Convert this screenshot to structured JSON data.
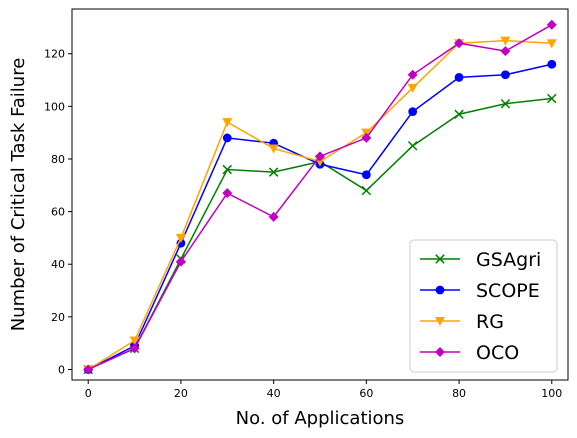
{
  "chart_data": {
    "type": "line",
    "xlabel": "No. of Applications",
    "ylabel": "Number of Critical Task Failure",
    "x": [
      0,
      10,
      20,
      30,
      40,
      50,
      60,
      70,
      80,
      90,
      100
    ],
    "xlim": [
      -3.5,
      103.5
    ],
    "ylim": [
      -4,
      137
    ],
    "xticks": [
      0,
      20,
      40,
      60,
      80,
      100
    ],
    "yticks": [
      0,
      20,
      40,
      60,
      80,
      100,
      120
    ],
    "grid": false,
    "legend_position": "lower-right",
    "series": [
      {
        "name": "GSAgri",
        "color": "#008000",
        "marker": "x",
        "values": [
          0,
          8,
          42,
          76,
          75,
          79,
          68,
          85,
          97,
          101,
          103
        ]
      },
      {
        "name": "SCOPE",
        "color": "#0000ff",
        "marker": "circle",
        "values": [
          0,
          9,
          48,
          88,
          86,
          78,
          74,
          98,
          111,
          112,
          116
        ]
      },
      {
        "name": "RG",
        "color": "#ffa500",
        "marker": "triangle-down",
        "values": [
          0,
          11,
          50,
          94,
          84,
          79,
          90,
          107,
          124,
          125,
          124
        ]
      },
      {
        "name": "OCO",
        "color": "#c000c0",
        "marker": "diamond",
        "values": [
          0,
          8,
          41,
          67,
          58,
          81,
          88,
          112,
          124,
          121,
          131
        ]
      }
    ]
  }
}
